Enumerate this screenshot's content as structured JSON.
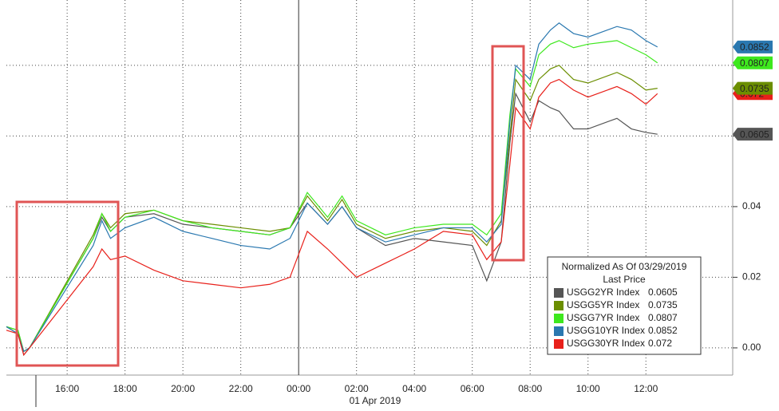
{
  "chart_data": {
    "type": "line",
    "legend_title": "Normalized As Of 03/29/2019",
    "legend_subtitle": "Last Price",
    "date_label": "01 Apr 2019",
    "x": [
      13.9,
      14.3,
      14.5,
      14.7,
      16.9,
      17.2,
      17.5,
      18,
      19,
      20,
      21,
      22,
      23,
      23.7,
      24.3,
      25,
      25.5,
      26,
      27,
      28,
      29,
      30,
      30.5,
      31,
      31.3,
      31.5,
      32,
      32.3,
      32.7,
      33,
      33.5,
      34,
      35,
      35.5,
      36,
      36.4
    ],
    "xlim": [
      13.9,
      39
    ],
    "xticks": [
      {
        "value": 16,
        "label": "16:00"
      },
      {
        "value": 18,
        "label": "18:00"
      },
      {
        "value": 20,
        "label": "20:00"
      },
      {
        "value": 22,
        "label": "22:00"
      },
      {
        "value": 24,
        "label": "00:00"
      },
      {
        "value": 26,
        "label": "02:00"
      },
      {
        "value": 28,
        "label": "04:00"
      },
      {
        "value": 30,
        "label": "06:00"
      },
      {
        "value": 32,
        "label": "08:00"
      },
      {
        "value": 34,
        "label": "10:00"
      },
      {
        "value": 36,
        "label": "12:00"
      }
    ],
    "ylim": [
      -0.0077,
      0.0985
    ],
    "yticks": [
      {
        "value": 0,
        "label": "0.00"
      },
      {
        "value": 0.02,
        "label": "0.02"
      },
      {
        "value": 0.04,
        "label": "0.04"
      }
    ],
    "grid_lines_y": [
      0.06,
      0.08
    ],
    "grid": true,
    "series": [
      {
        "name": "USGG2YR Index",
        "color": "#555555",
        "last_price": 0.0605,
        "values": [
          0.006,
          0.004,
          -0.002,
          0.0,
          0.031,
          0.037,
          0.033,
          0.037,
          0.038,
          0.035,
          0.034,
          0.033,
          0.032,
          0.034,
          0.041,
          0.035,
          0.04,
          0.034,
          0.029,
          0.031,
          0.03,
          0.029,
          0.019,
          0.03,
          0.058,
          0.072,
          0.064,
          0.07,
          0.068,
          0.067,
          0.062,
          0.062,
          0.065,
          0.062,
          0.061,
          0.0605
        ]
      },
      {
        "name": "USGG5YR Index",
        "color": "#6b8e00",
        "last_price": 0.0735,
        "values": [
          0.006,
          0.005,
          -0.001,
          0.0,
          0.032,
          0.038,
          0.034,
          0.038,
          0.039,
          0.036,
          0.035,
          0.034,
          0.033,
          0.034,
          0.043,
          0.036,
          0.042,
          0.035,
          0.031,
          0.033,
          0.034,
          0.033,
          0.029,
          0.036,
          0.06,
          0.076,
          0.07,
          0.076,
          0.079,
          0.08,
          0.076,
          0.075,
          0.078,
          0.076,
          0.073,
          0.0735
        ]
      },
      {
        "name": "USGG7YR Index",
        "color": "#3ee81e",
        "last_price": 0.0807,
        "values": [
          0.006,
          0.005,
          -0.001,
          0.0,
          0.031,
          0.038,
          0.033,
          0.037,
          0.039,
          0.036,
          0.034,
          0.033,
          0.032,
          0.034,
          0.044,
          0.037,
          0.043,
          0.036,
          0.032,
          0.034,
          0.035,
          0.035,
          0.032,
          0.038,
          0.066,
          0.079,
          0.074,
          0.083,
          0.086,
          0.087,
          0.085,
          0.086,
          0.087,
          0.085,
          0.083,
          0.0807
        ]
      },
      {
        "name": "USGG10YR Index",
        "color": "#2a78b0",
        "last_price": 0.0852,
        "values": [
          0.006,
          0.004,
          -0.001,
          0.0,
          0.029,
          0.036,
          0.031,
          0.034,
          0.037,
          0.033,
          0.031,
          0.029,
          0.028,
          0.031,
          0.041,
          0.035,
          0.04,
          0.034,
          0.03,
          0.032,
          0.034,
          0.034,
          0.03,
          0.035,
          0.064,
          0.08,
          0.076,
          0.086,
          0.09,
          0.092,
          0.089,
          0.088,
          0.091,
          0.09,
          0.087,
          0.0852
        ]
      },
      {
        "name": "USGG30YR Index",
        "color": "#e8201a",
        "last_price": 0.072,
        "values": [
          0.005,
          0.004,
          -0.002,
          0.0,
          0.023,
          0.028,
          0.025,
          0.026,
          0.022,
          0.019,
          0.018,
          0.017,
          0.018,
          0.02,
          0.033,
          0.028,
          0.024,
          0.02,
          0.024,
          0.028,
          0.033,
          0.032,
          0.025,
          0.03,
          0.052,
          0.068,
          0.062,
          0.071,
          0.075,
          0.076,
          0.073,
          0.071,
          0.074,
          0.072,
          0.069,
          0.072
        ]
      }
    ]
  }
}
